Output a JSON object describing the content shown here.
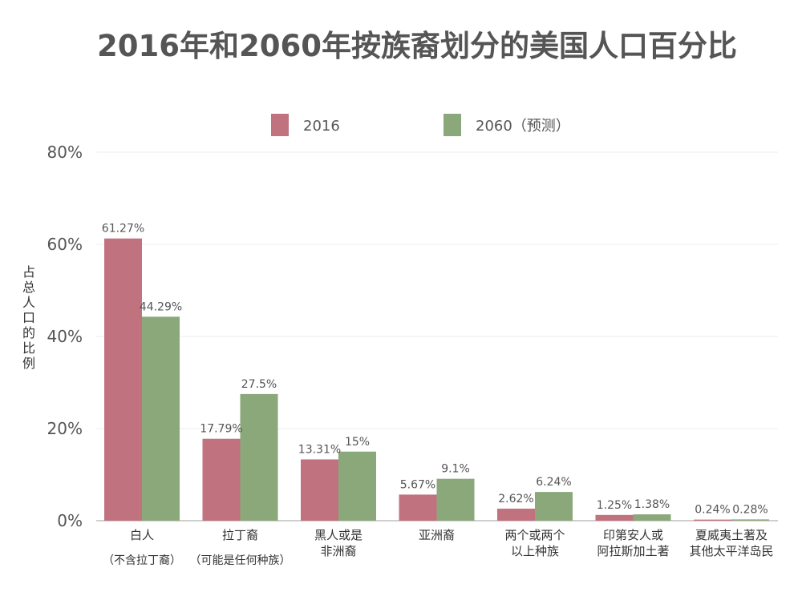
{
  "chart_data": {
    "type": "bar",
    "title": "2016年和2060年按族裔划分的美国人口百分比",
    "ylabel": "占总人口的比例",
    "xlabel": "",
    "ylim": [
      0,
      80
    ],
    "yticks": [
      "0%",
      "20%",
      "40%",
      "60%",
      "80%"
    ],
    "grid": true,
    "legend_position": "top",
    "categories": [
      [
        "白人"
      ],
      [
        "拉丁裔"
      ],
      [
        "黑人或是",
        "非洲裔"
      ],
      [
        "亚洲裔"
      ],
      [
        "两个或两个",
        "以上种族"
      ],
      [
        "印第安人或",
        "阿拉斯加土著"
      ],
      [
        "夏威夷土著及",
        "其他太平洋岛民"
      ]
    ],
    "category_notes": [
      {
        "text": "（不含拉丁裔）",
        "category": 0
      },
      {
        "text": "（可能是任何种族）",
        "category": 1
      }
    ],
    "series": [
      {
        "name": "2016",
        "color": "#c0737f",
        "values": [
          61.27,
          17.79,
          13.31,
          5.67,
          2.62,
          1.25,
          0.24
        ],
        "labels": [
          "61.27%",
          "17.79%",
          "13.31%",
          "5.67%",
          "2.62%",
          "1.25%",
          "0.24%"
        ]
      },
      {
        "name": "2060（预测）",
        "color": "#8ba87b",
        "values": [
          44.29,
          27.5,
          15,
          9.1,
          6.24,
          1.38,
          0.28
        ],
        "labels": [
          "44.29%",
          "27.5%",
          "15%",
          "9.1%",
          "6.24%",
          "1.38%",
          "0.28%"
        ]
      }
    ]
  }
}
